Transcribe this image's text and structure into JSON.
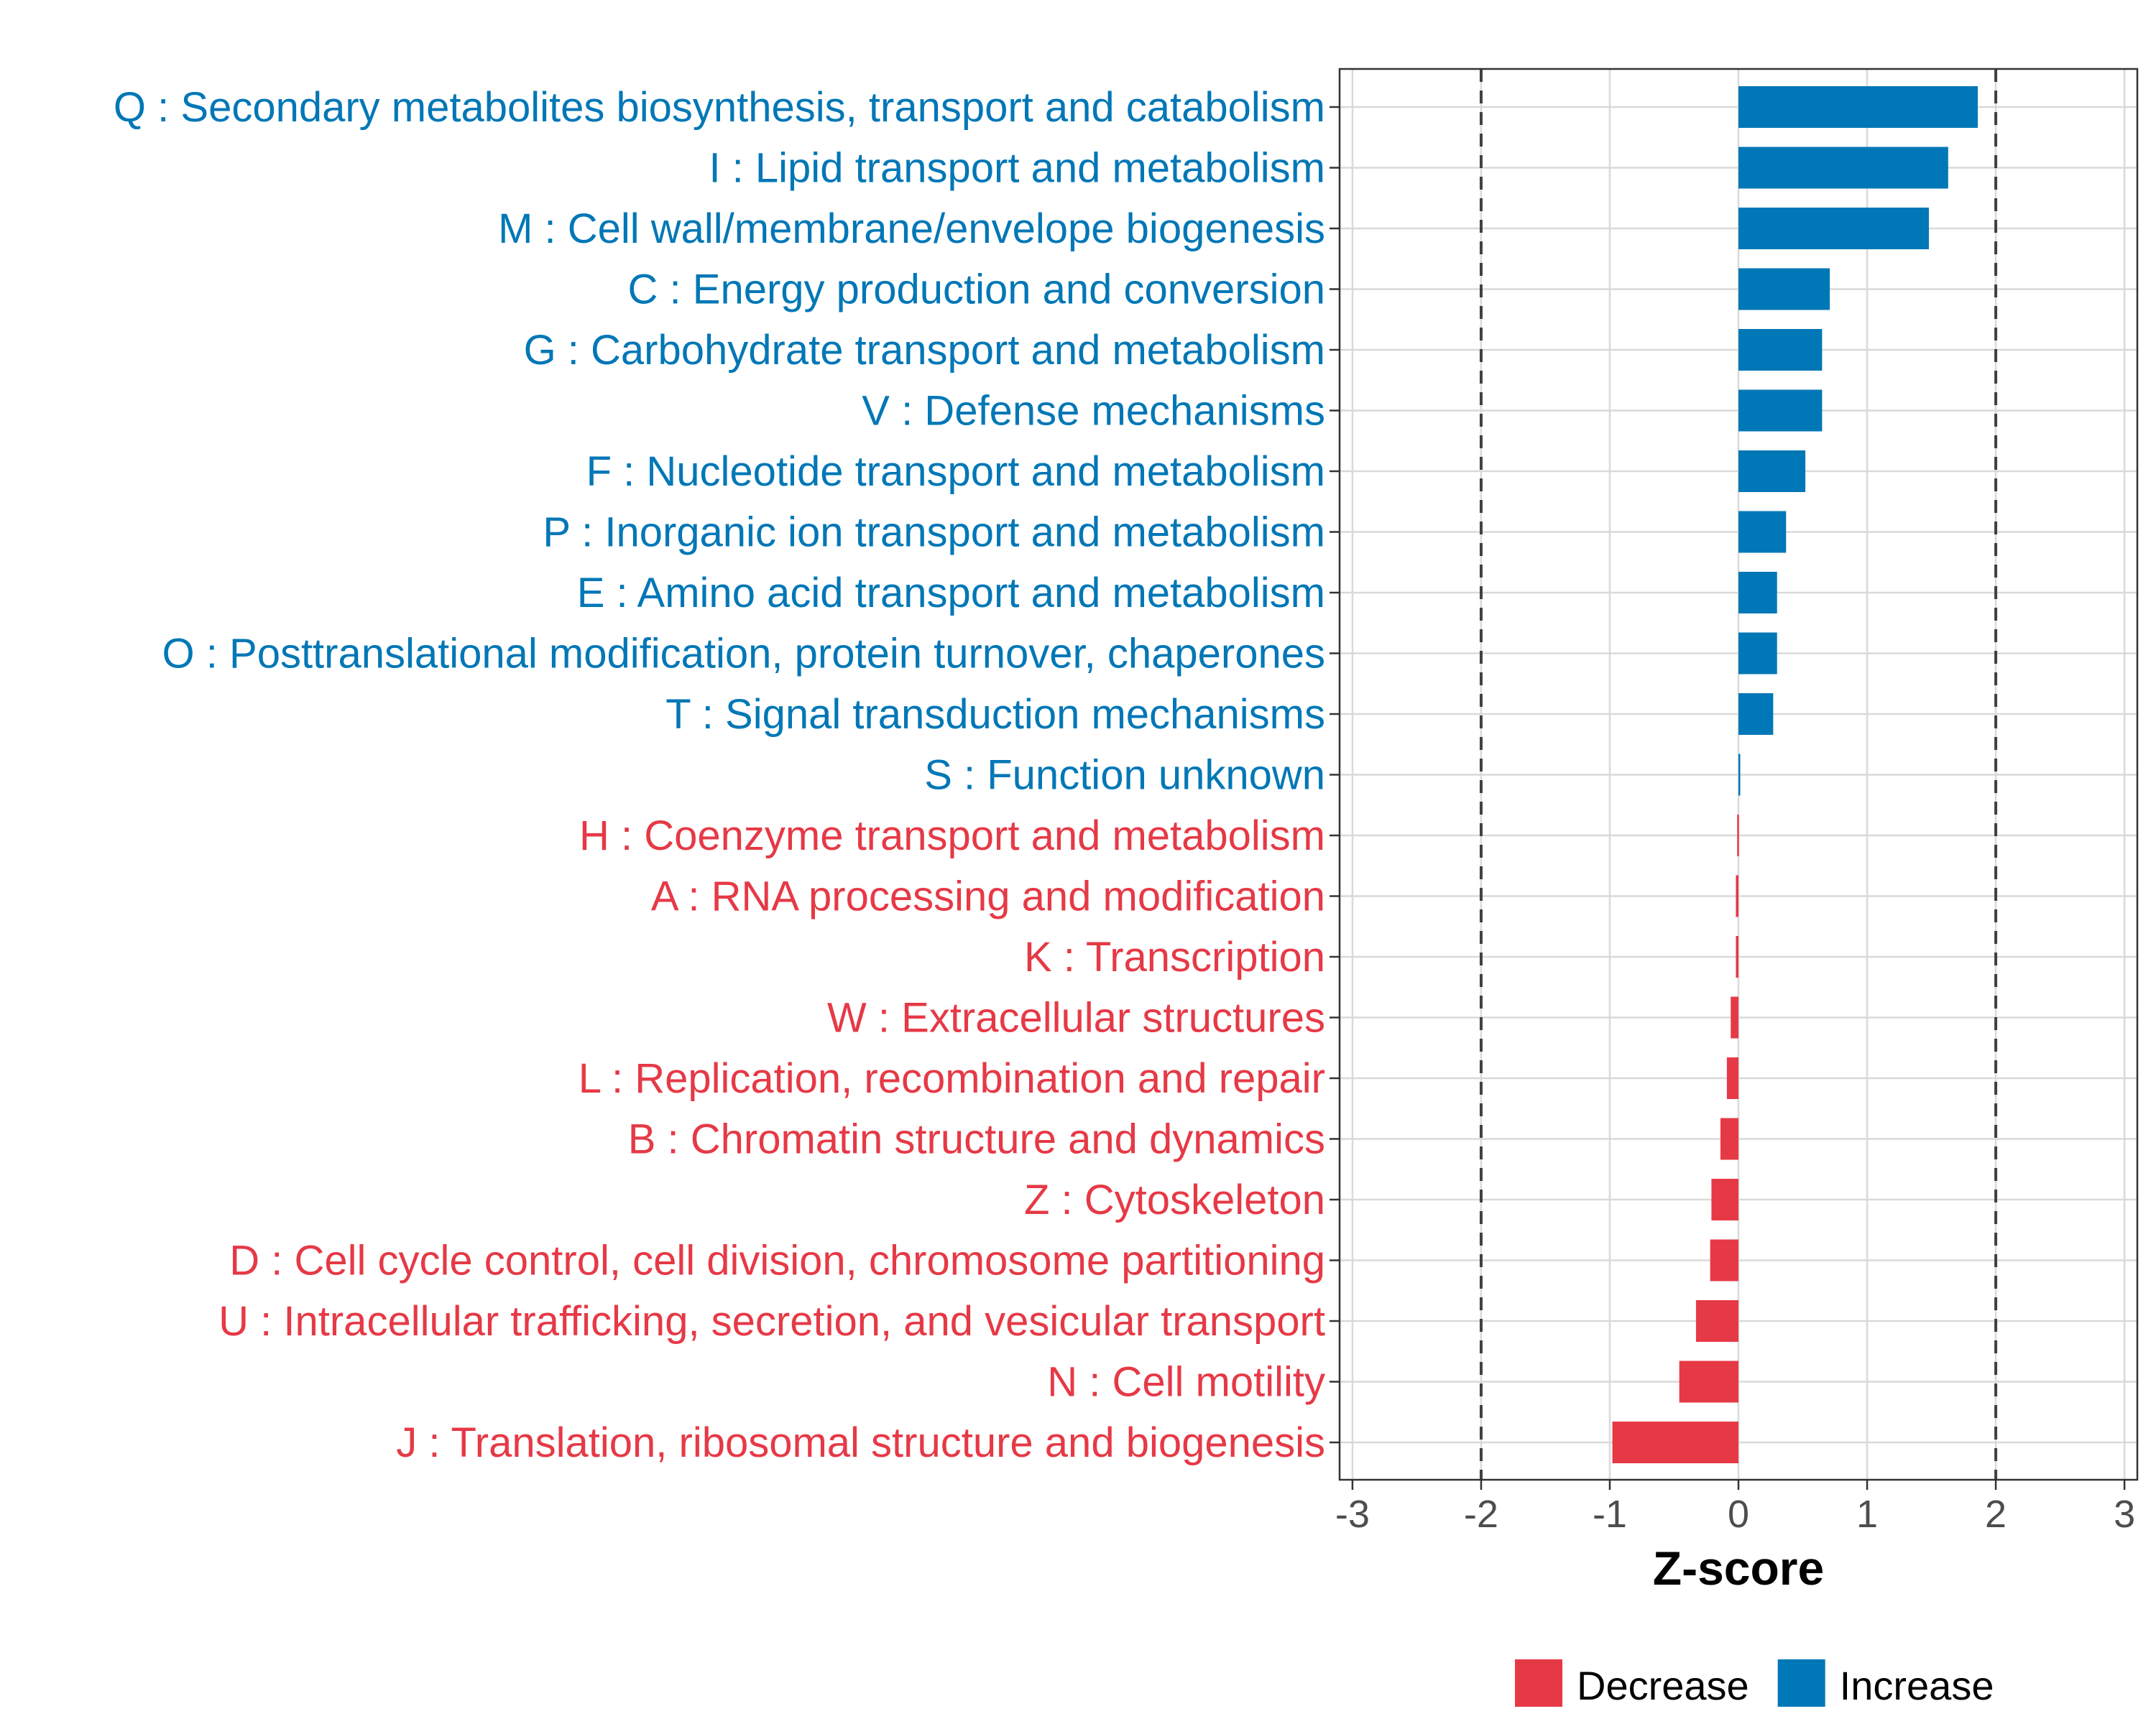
{
  "chart_data": {
    "type": "bar",
    "orientation": "horizontal",
    "title": "",
    "xlabel": "Z-score",
    "ylabel": "",
    "xlim": [
      -3.1,
      3.1
    ],
    "xticks": [
      -3,
      -2,
      -1,
      0,
      1,
      2,
      3
    ],
    "reference_lines": [
      -2,
      2
    ],
    "grid": true,
    "legend_position": "bottom",
    "categories": [
      "Q : Secondary metabolites biosynthesis, transport and catabolism",
      "I : Lipid transport and metabolism",
      "M : Cell wall/membrane/envelope biogenesis",
      "C : Energy production and conversion",
      "G : Carbohydrate transport and metabolism",
      "V : Defense mechanisms",
      "F : Nucleotide transport and metabolism",
      "P : Inorganic ion transport and metabolism",
      "E : Amino acid transport and metabolism",
      "O : Posttranslational modification, protein turnover, chaperones",
      "T : Signal transduction mechanisms",
      "S : Function unknown",
      "H : Coenzyme transport and metabolism",
      "A : RNA processing and modification",
      "K : Transcription",
      "W : Extracellular structures",
      "L : Replication, recombination and repair",
      "B : Chromatin structure and dynamics",
      "Z : Cytoskeleton",
      "D : Cell cycle control, cell division, chromosome partitioning",
      "U : Intracellular trafficking, secretion, and vesicular transport",
      "N : Cell motility",
      "J : Translation, ribosomal structure and biogenesis"
    ],
    "values": [
      1.86,
      1.63,
      1.48,
      0.71,
      0.65,
      0.65,
      0.52,
      0.37,
      0.3,
      0.3,
      0.27,
      0.01,
      -0.01,
      -0.02,
      -0.02,
      -0.06,
      -0.09,
      -0.14,
      -0.21,
      -0.22,
      -0.33,
      -0.46,
      -0.98
    ],
    "groups": [
      "Increase",
      "Increase",
      "Increase",
      "Increase",
      "Increase",
      "Increase",
      "Increase",
      "Increase",
      "Increase",
      "Increase",
      "Increase",
      "Increase",
      "Decrease",
      "Decrease",
      "Decrease",
      "Decrease",
      "Decrease",
      "Decrease",
      "Decrease",
      "Decrease",
      "Decrease",
      "Decrease",
      "Decrease"
    ],
    "legend": [
      {
        "name": "Decrease",
        "color": "#E63946"
      },
      {
        "name": "Increase",
        "color": "#0077B6"
      }
    ]
  }
}
